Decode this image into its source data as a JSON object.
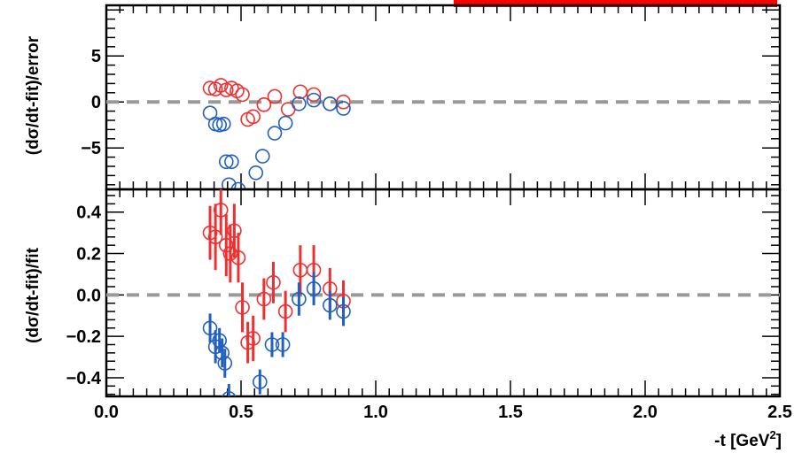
{
  "colors": {
    "red": "#f03030",
    "blue": "#2060c0",
    "zero_line": "#999999",
    "banner": "#ff0000"
  },
  "chart_data": [
    {
      "type": "scatter",
      "panel": "top",
      "ylabel": "(dσ/dt-fit)/error",
      "xlim": [
        0.0,
        2.5
      ],
      "ylim": [
        -9.5,
        10.5
      ],
      "yticks": [
        "5",
        "0",
        "−5"
      ],
      "ytick_values": [
        5,
        0,
        -5
      ],
      "reference_line": 0,
      "series": [
        {
          "color": "red",
          "x": [
            0.385,
            0.405,
            0.425,
            0.445,
            0.465,
            0.485,
            0.505,
            0.525,
            0.545,
            0.585,
            0.625,
            0.675,
            0.72,
            0.77,
            0.83,
            0.88
          ],
          "y": [
            1.5,
            1.4,
            1.8,
            1.3,
            1.5,
            1.2,
            0.8,
            -1.9,
            -1.6,
            -0.3,
            0.6,
            -0.8,
            1.1,
            0.8,
            -0.2,
            0.0
          ]
        },
        {
          "color": "blue",
          "x": [
            0.385,
            0.405,
            0.42,
            0.435,
            0.445,
            0.465,
            0.455,
            0.49,
            0.555,
            0.58,
            0.625,
            0.665,
            0.715,
            0.77,
            0.83,
            0.88
          ],
          "y": [
            -1.2,
            -2.4,
            -2.5,
            -2.4,
            -6.5,
            -6.5,
            -9.0,
            -9.5,
            -7.7,
            -5.9,
            -3.4,
            -2.3,
            -0.2,
            0.2,
            -0.2,
            -0.7
          ]
        }
      ]
    },
    {
      "type": "scatter",
      "panel": "bottom",
      "ylabel": "(dσ/dt-fit)/fit",
      "xlabel": "-t [GeV²]",
      "xlim": [
        0.0,
        2.5
      ],
      "ylim": [
        -0.49,
        0.51
      ],
      "yticks": [
        "0.4",
        "0.2",
        "0.0",
        "−0.2",
        "−0.4"
      ],
      "ytick_values": [
        0.4,
        0.2,
        0.0,
        -0.2,
        -0.4
      ],
      "xticks": [
        "0.0",
        "0.5",
        "1.0",
        "1.5",
        "2.0",
        "2.5"
      ],
      "xtick_values": [
        0.0,
        0.5,
        1.0,
        1.5,
        2.0,
        2.5
      ],
      "reference_line": 0,
      "series": [
        {
          "color": "red",
          "x": [
            0.385,
            0.405,
            0.425,
            0.445,
            0.46,
            0.475,
            0.49,
            0.505,
            0.525,
            0.545,
            0.585,
            0.62,
            0.665,
            0.72,
            0.77,
            0.83,
            0.88
          ],
          "y": [
            0.3,
            0.28,
            0.41,
            0.24,
            0.2,
            0.31,
            0.18,
            -0.06,
            -0.23,
            -0.21,
            -0.02,
            0.06,
            -0.08,
            0.12,
            0.12,
            0.03,
            -0.03
          ],
          "err": [
            0.13,
            0.16,
            0.12,
            0.15,
            0.14,
            0.13,
            0.12,
            0.12,
            0.1,
            0.11,
            0.1,
            0.1,
            0.1,
            0.12,
            0.12,
            0.1,
            0.1
          ]
        },
        {
          "color": "blue",
          "x": [
            0.385,
            0.405,
            0.42,
            0.43,
            0.44,
            0.455,
            0.57,
            0.615,
            0.655,
            0.715,
            0.77,
            0.83,
            0.88
          ],
          "y": [
            -0.16,
            -0.25,
            -0.22,
            -0.28,
            -0.33,
            -0.5,
            -0.42,
            -0.24,
            -0.24,
            -0.02,
            0.03,
            -0.05,
            -0.08
          ],
          "err": [
            0.07,
            0.08,
            0.06,
            0.07,
            0.07,
            0.07,
            0.06,
            0.06,
            0.06,
            0.08,
            0.08,
            0.07,
            0.07
          ]
        }
      ]
    }
  ]
}
